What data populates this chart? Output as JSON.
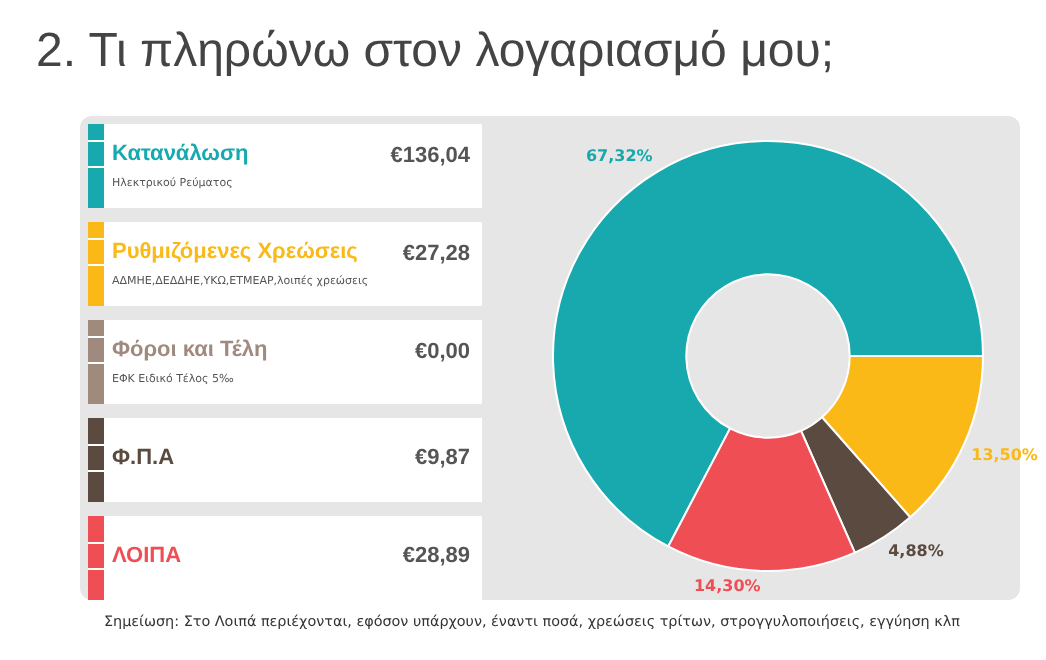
{
  "chart_data": {
    "type": "donut",
    "title": "2.  Τι πληρώνω στον λογαριασμό μου;",
    "categories": [
      "Κατανάλωση",
      "Ρυθμιζόμενες Χρεώσεις",
      "Φόροι και Τέλη",
      "Φ.Π.Α",
      "ΛΟΙΠΑ"
    ],
    "values": [
      67.32,
      13.5,
      0.0,
      4.88,
      14.3
    ],
    "colors": [
      "#17a9ae",
      "#fbb917",
      "#a08a7e",
      "#5a4a40",
      "#f04e55"
    ],
    "value_labels": [
      "67,32%",
      "13,50%",
      null,
      "4,88%",
      "14,30%"
    ],
    "annotations": [
      {
        "text": "Ηλεκτρικού Ρεύματος",
        "x": "Κατανάλωση"
      },
      {
        "text": "€136,04",
        "x": "Κατανάλωση"
      },
      {
        "text": "ΑΔΜΗΕ,ΔΕΔΔΗΕ,ΥΚΩ,ΕΤΜΕΑΡ,λοιπές χρεώσεις",
        "x": "Ρυθμιζόμενες Χρεώσεις"
      },
      {
        "text": "€27,28",
        "x": "Ρυθμιζόμενες Χρεώσεις"
      },
      {
        "text": "ΕΦΚ Ειδικό Τέλος 5‰",
        "x": "Φόροι και Τέλη"
      },
      {
        "text": "€0,00",
        "x": "Φόροι και Τέλη"
      },
      {
        "text": "€9,87",
        "x": "Φ.Π.Α"
      },
      {
        "text": "€28,89",
        "x": "ΛΟΙΠΑ"
      },
      "Σημείωση: Στο Λοιπά περιέχονται, εφόσον υπάρχουν, έναντι ποσά, χρεώσεις τρίτων, στρογγυλοποιήσεις, εγγύηση κλπ"
    ],
    "legend": "left"
  }
}
